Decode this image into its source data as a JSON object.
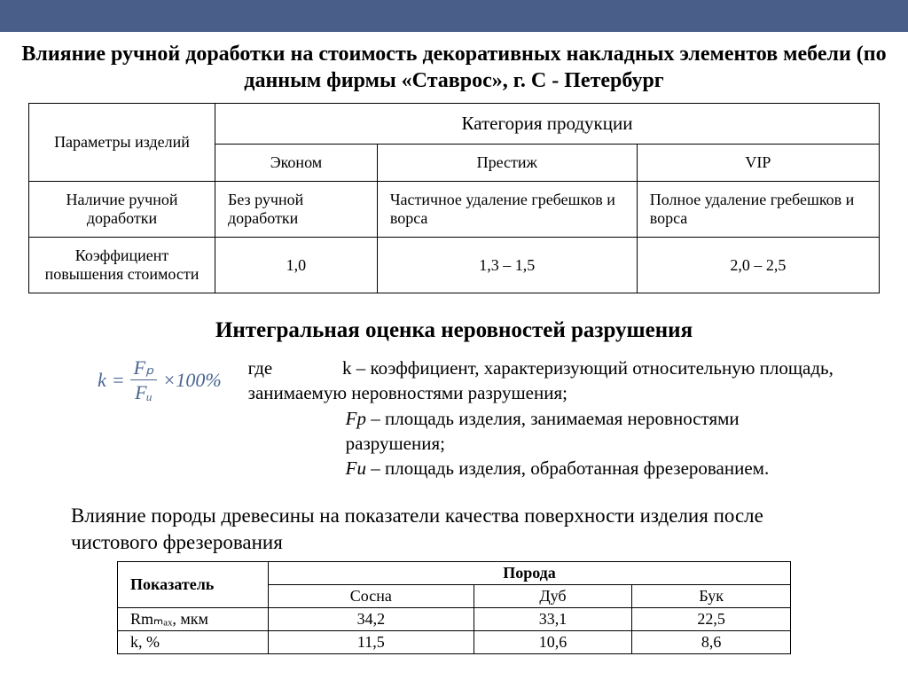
{
  "topbar_color": "#4a5e8a",
  "title": "Влияние ручной доработки на стоимость декоративных накладных элементов мебели (по данным фирмы «Ставрос», г. С - Петербург",
  "table1": {
    "category_header": "Категория продукции",
    "param_header": "Параметры изделий",
    "categories": [
      "Эконом",
      "Престиж",
      "VIP"
    ],
    "rows": [
      {
        "label": "Наличие ручной доработки",
        "cells": [
          "Без ручной доработки",
          "Частичное удаление гребешков и ворса",
          "Полное удаление гребешков и ворса"
        ],
        "align": "left"
      },
      {
        "label": "Коэффициент повышения стоимости",
        "cells": [
          "1,0",
          "1,3 – 1,5",
          "2,0 – 2,5"
        ],
        "align": "center"
      }
    ]
  },
  "subtitle": "Интегральная оценка неровностей разрушения",
  "formula": {
    "lhs": "k",
    "numerator": "Fₚ",
    "denominator": "Fᵤ",
    "tail": "×100%",
    "color": "#4a6690"
  },
  "definitions": {
    "lead": "где",
    "k_line": "k – коэффициент, характеризующий относительную площадь, занимаемую неровностями разрушения;",
    "fp_label": "Fр",
    "fp_desc": " – площадь изделия, занимаемая неровностями разрушения;",
    "fu_label": "Fu",
    "fu_desc": " – площадь изделия, обработанная фрезерованием."
  },
  "paragraph": "Влияние породы древесины на показатели качества поверхности изделия после чистового фрезерования",
  "table2": {
    "indicator_header": "Показатель",
    "species_header": "Порода",
    "species": [
      "Сосна",
      "Дуб",
      "Бук"
    ],
    "rows": [
      {
        "label": "Rmₘₐₓ, мкм",
        "cells": [
          "34,2",
          "33,1",
          "22,5"
        ]
      },
      {
        "label": "k, %",
        "cells": [
          "11,5",
          "10,6",
          "8,6"
        ]
      }
    ]
  }
}
